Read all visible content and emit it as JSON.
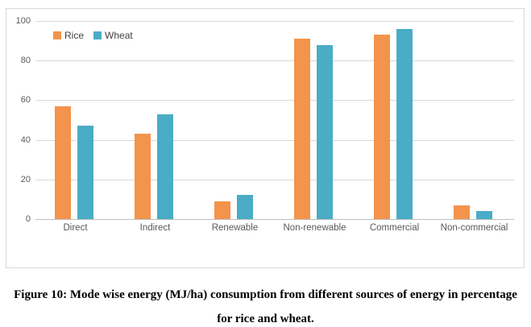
{
  "figure": {
    "caption_line1": "Figure 10: Mode wise energy (MJ/ha) consumption from different sources of energy in percentage",
    "caption_line2": "for rice and wheat."
  },
  "chart_data": {
    "type": "bar",
    "title": "",
    "xlabel": "",
    "ylabel": "",
    "categories": [
      "Direct",
      "Indirect",
      "Renewable",
      "Non-renewable",
      "Commercial",
      "Non-commercial"
    ],
    "series": [
      {
        "name": "Rice",
        "color": "#F3934C",
        "values": [
          57,
          43,
          9,
          91,
          93,
          7
        ]
      },
      {
        "name": "Wheat",
        "color": "#4BACC6",
        "values": [
          47,
          53,
          12,
          88,
          96,
          4
        ]
      }
    ],
    "ylim": [
      0,
      100
    ],
    "yticks": [
      0,
      20,
      40,
      60,
      80,
      100
    ],
    "grid": true,
    "legend_position": "top-left-inside"
  },
  "colors": {
    "gridline": "#D9D9D9",
    "axis_line": "#BFBFBF",
    "tick_text": "#595959",
    "legend_text": "#404040",
    "chart_border": "#D9D9D9",
    "background": "#FFFFFF"
  }
}
